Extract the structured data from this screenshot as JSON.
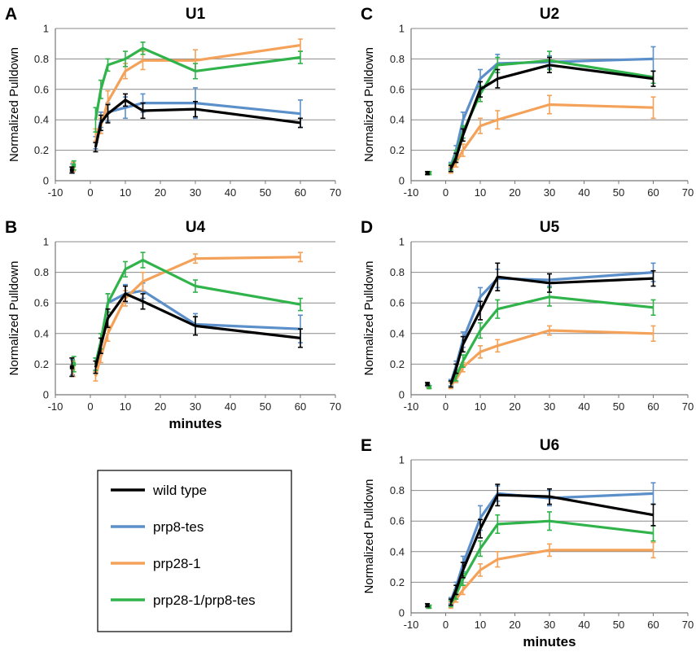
{
  "colors": {
    "wild type": "#000000",
    "prp8-tes": "#5b8fc9",
    "prp28-1": "#f4a259",
    "prp28-1/prp8-tes": "#2fb34a"
  },
  "legend": {
    "entries": [
      "wild type",
      "prp8-tes",
      "prp28-1",
      "prp28-1/prp8-tes"
    ]
  },
  "chart_data": [
    {
      "type": "line",
      "letter": "A",
      "title": "U1",
      "ylabel": "Normalized Pulldown",
      "xlabel": "",
      "xlim": [
        -10,
        70
      ],
      "ylim": [
        0,
        1
      ],
      "xticks": [
        -10,
        0,
        10,
        20,
        30,
        40,
        50,
        60,
        70
      ],
      "yticks": [
        0,
        0.2,
        0.4,
        0.6,
        0.8,
        1
      ],
      "yticklabels": [
        "0",
        "0.2",
        "0.4",
        "0.6",
        "0.8",
        "1"
      ],
      "grid": "horizontal",
      "x": [
        1.5,
        3,
        5,
        10,
        15,
        30,
        60
      ],
      "premark_x": -5,
      "series": [
        {
          "name": "wild type",
          "pre": [
            0.07,
            0.02
          ],
          "values": [
            0.22,
            0.38,
            0.44,
            0.53,
            0.46,
            0.47,
            0.38
          ],
          "err": [
            0.03,
            0.05,
            0.06,
            0.04,
            0.05,
            0.05,
            0.03
          ]
        },
        {
          "name": "prp8-tes",
          "pre": [
            0.08,
            0.03
          ],
          "values": [
            0.25,
            0.4,
            0.45,
            0.48,
            0.51,
            0.51,
            0.44
          ],
          "err": [
            0.04,
            0.05,
            0.06,
            0.07,
            0.06,
            0.1,
            0.09
          ]
        },
        {
          "name": "prp28-1",
          "pre": [
            0.09,
            0.03
          ],
          "values": [
            0.3,
            0.36,
            0.52,
            0.72,
            0.79,
            0.79,
            0.89
          ],
          "err": [
            0.04,
            0.05,
            0.07,
            0.05,
            0.06,
            0.07,
            0.04
          ]
        },
        {
          "name": "prp28-1/prp8-tes",
          "pre": [
            0.1,
            0.03
          ],
          "values": [
            0.4,
            0.6,
            0.76,
            0.8,
            0.87,
            0.72,
            0.81
          ],
          "err": [
            0.08,
            0.06,
            0.04,
            0.05,
            0.04,
            0.05,
            0.04
          ]
        }
      ]
    },
    {
      "type": "line",
      "letter": "C",
      "title": "U2",
      "ylabel": "Normalized Pulldown",
      "xlabel": "",
      "xlim": [
        -10,
        70
      ],
      "ylim": [
        0,
        1
      ],
      "xticks": [
        -10,
        0,
        10,
        20,
        30,
        40,
        50,
        60,
        70
      ],
      "yticks": [
        0,
        0.2,
        0.4,
        0.6,
        0.8,
        1
      ],
      "yticklabels": [
        "0",
        "0.2",
        "0.4",
        "0.6",
        "0.8",
        "1"
      ],
      "grid": "horizontal",
      "x": [
        1.5,
        3,
        5,
        10,
        15,
        30,
        60
      ],
      "premark_x": -5,
      "series": [
        {
          "name": "wild type",
          "pre": [
            0.05,
            0.01
          ],
          "values": [
            0.08,
            0.15,
            0.3,
            0.6,
            0.67,
            0.76,
            0.67
          ],
          "err": [
            0.02,
            0.03,
            0.04,
            0.05,
            0.06,
            0.05,
            0.05
          ]
        },
        {
          "name": "prp8-tes",
          "pre": [
            0.05,
            0.01
          ],
          "values": [
            0.1,
            0.2,
            0.4,
            0.67,
            0.77,
            0.78,
            0.8
          ],
          "err": [
            0.02,
            0.03,
            0.05,
            0.06,
            0.06,
            0.04,
            0.08
          ]
        },
        {
          "name": "prp28-1",
          "pre": [
            0.05,
            0.01
          ],
          "values": [
            0.07,
            0.12,
            0.2,
            0.36,
            0.4,
            0.5,
            0.48
          ],
          "err": [
            0.02,
            0.03,
            0.04,
            0.05,
            0.06,
            0.06,
            0.07
          ]
        },
        {
          "name": "prp28-1/prp8-tes",
          "pre": [
            0.05,
            0.01
          ],
          "values": [
            0.09,
            0.17,
            0.32,
            0.57,
            0.76,
            0.79,
            0.68
          ],
          "err": [
            0.02,
            0.03,
            0.04,
            0.05,
            0.05,
            0.06,
            0.04
          ]
        }
      ]
    },
    {
      "type": "line",
      "letter": "B",
      "title": "U4",
      "ylabel": "Normalized Pulldown",
      "xlabel": "minutes",
      "xlim": [
        -10,
        70
      ],
      "ylim": [
        0,
        1
      ],
      "xticks": [
        -10,
        0,
        10,
        20,
        30,
        40,
        50,
        60,
        70
      ],
      "yticks": [
        0,
        0.2,
        0.4,
        0.6,
        0.8,
        1
      ],
      "yticklabels": [
        "0",
        "0.2",
        "0.4",
        "0.6",
        "0.8",
        "1"
      ],
      "grid": "horizontal",
      "x": [
        1.5,
        3,
        5,
        10,
        15,
        30,
        60
      ],
      "premark_x": -5,
      "series": [
        {
          "name": "wild type",
          "pre": [
            0.18,
            0.06
          ],
          "values": [
            0.18,
            0.32,
            0.5,
            0.66,
            0.61,
            0.45,
            0.37
          ],
          "err": [
            0.04,
            0.05,
            0.06,
            0.05,
            0.05,
            0.06,
            0.06
          ]
        },
        {
          "name": "prp8-tes",
          "pre": [
            0.18,
            0.05
          ],
          "values": [
            0.2,
            0.35,
            0.6,
            0.66,
            0.68,
            0.46,
            0.43
          ],
          "err": [
            0.04,
            0.05,
            0.06,
            0.06,
            0.05,
            0.07,
            0.09
          ]
        },
        {
          "name": "prp28-1",
          "pre": [
            0.17,
            0.05
          ],
          "values": [
            0.12,
            0.25,
            0.4,
            0.63,
            0.74,
            0.89,
            0.9
          ],
          "err": [
            0.03,
            0.04,
            0.05,
            0.05,
            0.06,
            0.03,
            0.03
          ]
        },
        {
          "name": "prp28-1/prp8-tes",
          "pre": [
            0.2,
            0.05
          ],
          "values": [
            0.2,
            0.35,
            0.6,
            0.82,
            0.88,
            0.71,
            0.59
          ],
          "err": [
            0.04,
            0.05,
            0.06,
            0.05,
            0.05,
            0.04,
            0.04
          ]
        }
      ]
    },
    {
      "type": "line",
      "letter": "D",
      "title": "U5",
      "ylabel": "Normalized Pulldown",
      "xlabel": "",
      "xlim": [
        -10,
        70
      ],
      "ylim": [
        0,
        1
      ],
      "xticks": [
        -10,
        0,
        10,
        20,
        30,
        40,
        50,
        60,
        70
      ],
      "yticks": [
        0,
        0.2,
        0.4,
        0.6,
        0.8,
        1
      ],
      "yticklabels": [
        "0",
        "0.2",
        "0.4",
        "0.6",
        "0.8",
        "1"
      ],
      "grid": "horizontal",
      "x": [
        1.5,
        3,
        5,
        10,
        15,
        30,
        60
      ],
      "premark_x": -5,
      "series": [
        {
          "name": "wild type",
          "pre": [
            0.07,
            0.01
          ],
          "values": [
            0.07,
            0.17,
            0.33,
            0.55,
            0.77,
            0.73,
            0.76
          ],
          "err": [
            0.02,
            0.03,
            0.05,
            0.06,
            0.09,
            0.06,
            0.05
          ]
        },
        {
          "name": "prp8-tes",
          "pre": [
            0.06,
            0.01
          ],
          "values": [
            0.08,
            0.19,
            0.36,
            0.64,
            0.76,
            0.75,
            0.8
          ],
          "err": [
            0.02,
            0.03,
            0.05,
            0.06,
            0.06,
            0.04,
            0.06
          ]
        },
        {
          "name": "prp28-1",
          "pre": [
            0.05,
            0.01
          ],
          "values": [
            0.06,
            0.1,
            0.18,
            0.28,
            0.32,
            0.42,
            0.4
          ],
          "err": [
            0.02,
            0.02,
            0.03,
            0.04,
            0.04,
            0.03,
            0.05
          ]
        },
        {
          "name": "prp28-1/prp8-tes",
          "pre": [
            0.05,
            0.01
          ],
          "values": [
            0.07,
            0.12,
            0.22,
            0.42,
            0.56,
            0.64,
            0.57
          ],
          "err": [
            0.02,
            0.03,
            0.04,
            0.05,
            0.06,
            0.06,
            0.05
          ]
        }
      ]
    },
    {
      "type": "line",
      "letter": "E",
      "title": "U6",
      "ylabel": "Normalized Pulldown",
      "xlabel": "minutes",
      "xlim": [
        -10,
        70
      ],
      "ylim": [
        0,
        1
      ],
      "xticks": [
        -10,
        0,
        10,
        20,
        30,
        40,
        50,
        60,
        70
      ],
      "yticks": [
        0,
        0.2,
        0.4,
        0.6,
        0.8,
        1
      ],
      "yticklabels": [
        "0",
        "0.2",
        "0.4",
        "0.6",
        "0.8",
        "1"
      ],
      "grid": "horizontal",
      "x": [
        1.5,
        3,
        5,
        10,
        15,
        30,
        60
      ],
      "premark_x": -5,
      "series": [
        {
          "name": "wild type",
          "pre": [
            0.05,
            0.01
          ],
          "values": [
            0.07,
            0.15,
            0.28,
            0.55,
            0.77,
            0.76,
            0.64
          ],
          "err": [
            0.02,
            0.03,
            0.05,
            0.06,
            0.07,
            0.05,
            0.07
          ]
        },
        {
          "name": "prp8-tes",
          "pre": [
            0.04,
            0.01
          ],
          "values": [
            0.08,
            0.17,
            0.32,
            0.62,
            0.78,
            0.75,
            0.78
          ],
          "err": [
            0.02,
            0.03,
            0.05,
            0.08,
            0.05,
            0.05,
            0.07
          ]
        },
        {
          "name": "prp28-1",
          "pre": [
            0.04,
            0.01
          ],
          "values": [
            0.05,
            0.09,
            0.15,
            0.28,
            0.35,
            0.41,
            0.41
          ],
          "err": [
            0.02,
            0.02,
            0.03,
            0.04,
            0.05,
            0.04,
            0.05
          ]
        },
        {
          "name": "prp28-1/prp8-tes",
          "pre": [
            0.04,
            0.01
          ],
          "values": [
            0.06,
            0.12,
            0.22,
            0.42,
            0.58,
            0.6,
            0.52
          ],
          "err": [
            0.02,
            0.03,
            0.04,
            0.05,
            0.06,
            0.06,
            0.05
          ]
        }
      ]
    }
  ]
}
